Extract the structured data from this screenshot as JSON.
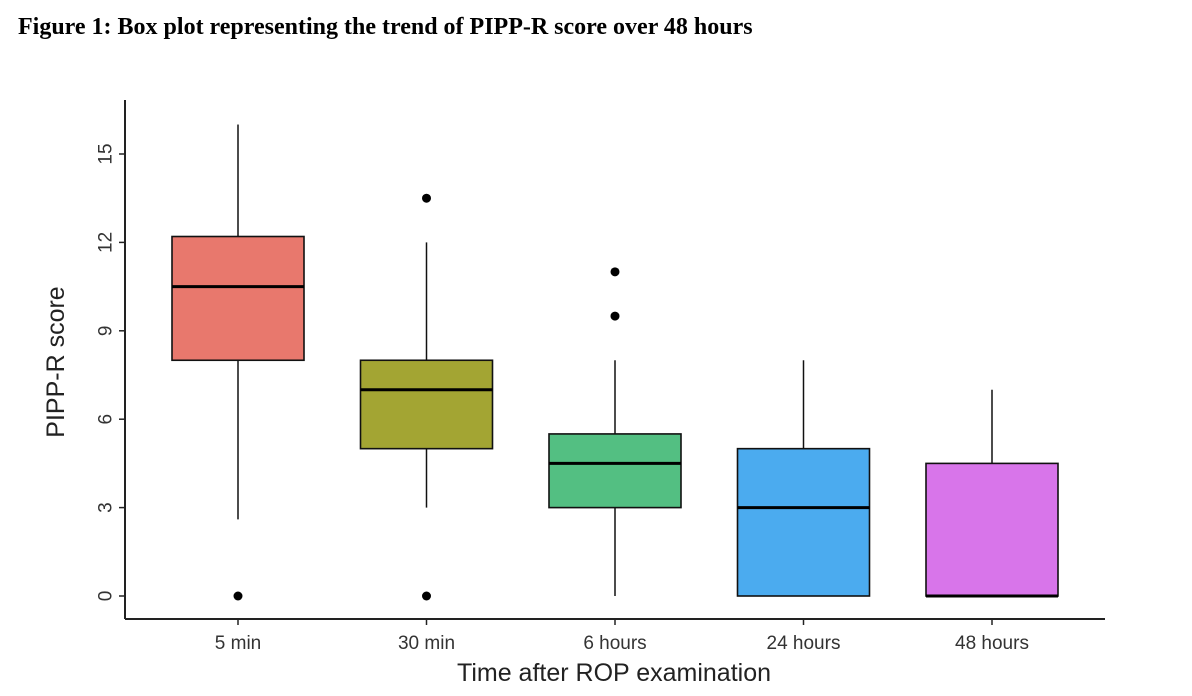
{
  "figure": {
    "caption": "Figure 1: Box plot representing the trend of PIPP-R score over 48 hours"
  },
  "chart_data": {
    "type": "box",
    "title": "",
    "xlabel": "Time after ROP examination",
    "ylabel": "PIPP-R score",
    "ylim": [
      -0.8,
      16.2
    ],
    "yticks": [
      0,
      3,
      6,
      9,
      12,
      15
    ],
    "grid": false,
    "legend": "none",
    "categories": [
      "5 min",
      "30 min",
      "6 hours",
      "24 hours",
      "48 hours"
    ],
    "boxes": [
      {
        "category": "5 min",
        "whisker_low": 2.6,
        "q1": 8,
        "median": 10.5,
        "q3": 12.2,
        "whisker_high": 16,
        "outliers": [
          0
        ],
        "color": "#E8786D"
      },
      {
        "category": "30 min",
        "whisker_low": 3,
        "q1": 5,
        "median": 7,
        "q3": 8,
        "whisker_high": 12,
        "outliers": [
          13.5,
          0
        ],
        "color": "#A3A533"
      },
      {
        "category": "6 hours",
        "whisker_low": 0,
        "q1": 3,
        "median": 4.5,
        "q3": 5.5,
        "whisker_high": 8,
        "outliers": [
          11,
          9.5
        ],
        "color": "#53BF82"
      },
      {
        "category": "24 hours",
        "whisker_low": 0,
        "q1": 0,
        "median": 3,
        "q3": 5,
        "whisker_high": 8,
        "outliers": [],
        "color": "#4BABEF"
      },
      {
        "category": "48 hours",
        "whisker_low": 0,
        "q1": 0,
        "median": 0,
        "q3": 4.5,
        "whisker_high": 7,
        "outliers": [],
        "color": "#D875EA"
      }
    ]
  }
}
